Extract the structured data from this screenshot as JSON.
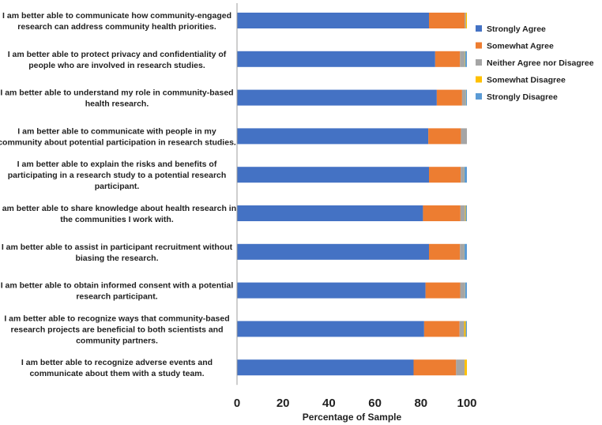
{
  "chart_data": {
    "type": "bar",
    "orientation": "horizontal",
    "stacked": true,
    "title": "",
    "xlabel": "Percentage of Sample",
    "ylabel": "",
    "xlim": [
      0,
      100
    ],
    "xticks": [
      0,
      20,
      40,
      60,
      80,
      100
    ],
    "grid": false,
    "legend_position": "right",
    "categories": [
      [
        "I am better able to communicate how community-engaged",
        "research can address community health priorities."
      ],
      [
        "I am better able to protect privacy and confidentiality of",
        "people who are involved in research studies."
      ],
      [
        "I am better able to understand my role in community-based",
        "health research."
      ],
      [
        "I am better able to communicate with people in my",
        "community about potential participation in research studies."
      ],
      [
        "I am better able to explain the risks and benefits of",
        "participating in a research study to a potential research",
        "participant."
      ],
      [
        "I am better able to share knowledge about health research in",
        "the communities I work with."
      ],
      [
        "I am better able to assist in participant recruitment without",
        "biasing the research."
      ],
      [
        "I am better able to obtain informed consent with a potential",
        "research participant."
      ],
      [
        "I am better able to recognize ways that community-based",
        "research projects are beneficial to both scientists and",
        "community partners."
      ],
      [
        "I am better able to recognize adverse events and",
        "communicate about them with a study team."
      ]
    ],
    "series": [
      {
        "name": "Strongly Agree",
        "color": "#4472C4",
        "values": [
          83.5,
          86.2,
          86.9,
          83.2,
          83.5,
          80.9,
          83.5,
          82.0,
          81.4,
          76.8
        ]
      },
      {
        "name": "Somewhat Agree",
        "color": "#ED7D31",
        "values": [
          15.5,
          10.8,
          11.0,
          14.2,
          13.8,
          16.3,
          13.5,
          15.1,
          15.4,
          18.5
        ]
      },
      {
        "name": "Neither Agree nor Disagree",
        "color": "#A5A5A5",
        "values": [
          0.5,
          2.0,
          1.5,
          2.6,
          1.5,
          2.0,
          1.8,
          2.0,
          2.0,
          3.7
        ]
      },
      {
        "name": "Somewhat Disagree",
        "color": "#FFC000",
        "values": [
          0.5,
          0.2,
          0.1,
          0.0,
          0.1,
          0.3,
          0.1,
          0.1,
          0.7,
          1.0
        ]
      },
      {
        "name": "Strongly Disagree",
        "color": "#5B9BD5",
        "values": [
          0.0,
          0.8,
          0.5,
          0.0,
          1.1,
          0.5,
          1.1,
          0.8,
          0.5,
          0.0
        ]
      }
    ]
  }
}
